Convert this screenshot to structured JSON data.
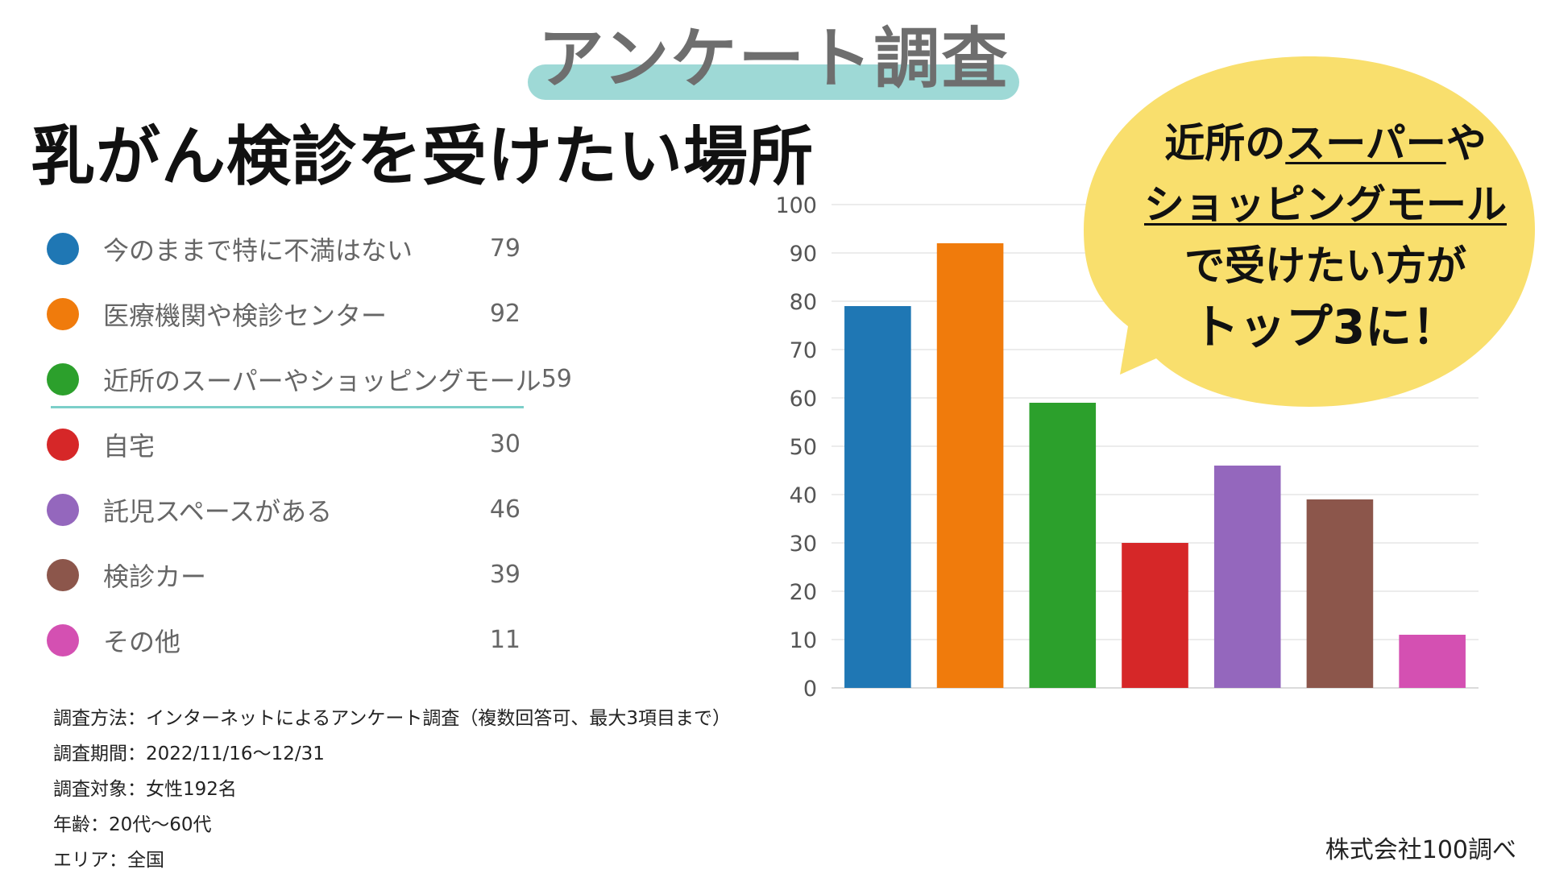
{
  "header": {
    "title": "アンケート調査"
  },
  "subtitle": "乳がん検診を受けたい場所",
  "legend": [
    {
      "label": "今のままで特に不満はない",
      "value": "79",
      "color": "#1f77b4"
    },
    {
      "label": "医療機関や検診センター",
      "value": "92",
      "color": "#f07b0c"
    },
    {
      "label": "近所のスーパーやショッピングモール",
      "value": "59",
      "color": "#2ca02c"
    },
    {
      "label": "自宅",
      "value": "30",
      "color": "#d62728"
    },
    {
      "label": "託児スペースがある",
      "value": "46",
      "color": "#9467bd"
    },
    {
      "label": "検診カー",
      "value": "39",
      "color": "#8c564b"
    },
    {
      "label": "その他",
      "value": "11",
      "color": "#d450b2"
    }
  ],
  "chart_data": {
    "type": "bar",
    "categories": [
      "今のままで特に不満はない",
      "医療機関や検診センター",
      "近所のスーパーやショッピングモール",
      "自宅",
      "託児スペースがある",
      "検診カー",
      "その他"
    ],
    "values": [
      79,
      92,
      59,
      30,
      46,
      39,
      11
    ],
    "colors": [
      "#1f77b4",
      "#f07b0c",
      "#2ca02c",
      "#d62728",
      "#9467bd",
      "#8c564b",
      "#d450b2"
    ],
    "ylim": [
      0,
      100
    ],
    "yticks": [
      0,
      10,
      20,
      30,
      40,
      50,
      60,
      70,
      80,
      90,
      100
    ],
    "grid": true
  },
  "callout": {
    "line1a": "近所の",
    "line1b": "スーパー",
    "line1c": "や",
    "line2": "ショッピングモール",
    "line3": "で受けたい方が",
    "line4": "トップ3に！",
    "fill": "#f9df6d"
  },
  "notes": [
    "調査方法：インターネットによるアンケート調査（複数回答可、最大3項目まで）",
    "調査期間：2022/11/16〜12/31",
    "調査対象：女性192名",
    "年齢：20代〜60代",
    "エリア：全国"
  ],
  "credit": "株式会社100調べ"
}
